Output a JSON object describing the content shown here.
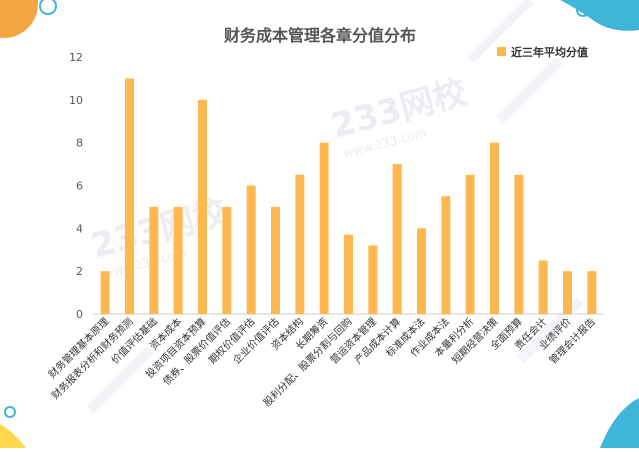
{
  "chart_data": {
    "type": "bar",
    "title": "财务成本管理各章分值分布",
    "xlabel": "",
    "ylabel": "",
    "ylim": [
      0,
      12
    ],
    "yticks": [
      0,
      2,
      4,
      6,
      8,
      10,
      12
    ],
    "grid": false,
    "legend_position": "top-right",
    "categories": [
      "财务管理基本原理",
      "财务报表分析和财务预测",
      "价值评估基础",
      "资本成本",
      "投资项目资本预算",
      "债券、股票价值评估",
      "期权价值评估",
      "企业价值评估",
      "资本结构",
      "长期筹资",
      "股利分配、股票分割与回购",
      "营运资本管理",
      "产品成本计算",
      "标准成本法",
      "作业成本法",
      "本量利分析",
      "短期经营决策",
      "全面预算",
      "责任会计",
      "业绩评价",
      "管理会计报告"
    ],
    "series": [
      {
        "name": "近三年平均分值",
        "color": "#FFB84D",
        "values": [
          2,
          11,
          5,
          5,
          10,
          5,
          6,
          5,
          6.5,
          8,
          3.7,
          3.2,
          7,
          4,
          5.5,
          6.5,
          8,
          6.5,
          2.5,
          2,
          2
        ]
      }
    ]
  },
  "decor": {
    "watermark": "233网校",
    "watermark_sub": "www.233.com",
    "accent_orange": "#F5A640",
    "accent_blue": "#3FB6D9",
    "accent_yellow": "#FFD84D"
  }
}
